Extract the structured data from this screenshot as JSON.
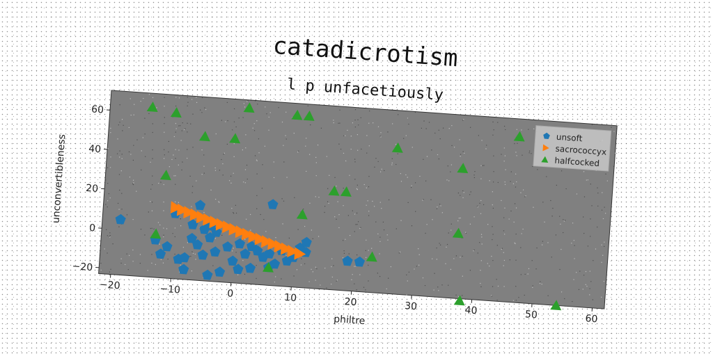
{
  "chart_data": {
    "type": "scatter",
    "title": "catadicrotism",
    "subtitle": "l p unfacetiously",
    "xlabel": "philtre",
    "ylabel": "unconvertibleness",
    "xlim": [
      -22,
      62
    ],
    "ylim": [
      -23,
      70
    ],
    "xticks": [
      -20,
      -10,
      0,
      10,
      20,
      30,
      40,
      50,
      60
    ],
    "yticks": [
      -20,
      0,
      20,
      40,
      60
    ],
    "grid": false,
    "legend_position": "top-right",
    "series": [
      {
        "name": "unsoft",
        "marker": "pentagon",
        "color": "#1f77b4",
        "points": [
          [
            -19,
            5
          ],
          [
            -10,
            10
          ],
          [
            -6,
            15
          ],
          [
            -7,
            5
          ],
          [
            -5,
            3
          ],
          [
            -4,
            5
          ],
          [
            -3,
            2
          ],
          [
            -13,
            -4
          ],
          [
            -12,
            -11
          ],
          [
            -11,
            -7
          ],
          [
            -9,
            -13
          ],
          [
            -8,
            -12
          ],
          [
            -7,
            -2
          ],
          [
            -6,
            -5
          ],
          [
            -5,
            -10
          ],
          [
            -4,
            -1
          ],
          [
            -3,
            -8
          ],
          [
            -2,
            -18
          ],
          [
            -1,
            -5
          ],
          [
            0,
            -12
          ],
          [
            1,
            -3
          ],
          [
            2,
            -8
          ],
          [
            3,
            -4
          ],
          [
            4,
            -6
          ],
          [
            5,
            -9
          ],
          [
            6,
            -7
          ],
          [
            7,
            -12
          ],
          [
            8,
            -5
          ],
          [
            9,
            -10
          ],
          [
            10,
            -8
          ],
          [
            11,
            -3
          ],
          [
            12,
            -5
          ],
          [
            12,
            0
          ],
          [
            -8,
            -18
          ],
          [
            -4,
            -20
          ],
          [
            1,
            -16
          ],
          [
            3,
            -15
          ],
          [
            6,
            -14
          ],
          [
            6,
            18
          ],
          [
            19,
            -8
          ],
          [
            21,
            -8
          ]
        ]
      },
      {
        "name": "sacrococcyx",
        "marker": "triangle-right",
        "color": "#ff7f0e",
        "points": [
          [
            -10,
            13
          ],
          [
            -8.9,
            12.0
          ],
          [
            -7.8,
            11.0
          ],
          [
            -6.7,
            10.0
          ],
          [
            -5.6,
            9.0
          ],
          [
            -4.5,
            8.0
          ],
          [
            -3.4,
            7.0
          ],
          [
            -2.3,
            6.0
          ],
          [
            -1.2,
            5.0
          ],
          [
            -0.1,
            4.0
          ],
          [
            1.0,
            3.0
          ],
          [
            2.1,
            2.0
          ],
          [
            3.2,
            1.0
          ],
          [
            4.3,
            0.0
          ],
          [
            5.4,
            -1.0
          ],
          [
            6.5,
            -2.0
          ],
          [
            7.6,
            -3.0
          ],
          [
            8.7,
            -4.0
          ],
          [
            9.8,
            -5.0
          ],
          [
            11,
            -6
          ]
        ]
      },
      {
        "name": "halfcocked",
        "marker": "triangle-up",
        "color": "#2ca02c",
        "points": [
          [
            -15,
            63
          ],
          [
            -11,
            61
          ],
          [
            1,
            66
          ],
          [
            9,
            64
          ],
          [
            11,
            64
          ],
          [
            -6,
            50
          ],
          [
            -1,
            50
          ],
          [
            26,
            51
          ],
          [
            46,
            61
          ],
          [
            37,
            43
          ],
          [
            -12,
            29
          ],
          [
            16,
            27
          ],
          [
            18,
            27
          ],
          [
            11,
            14
          ],
          [
            37,
            10
          ],
          [
            -13,
            -1
          ],
          [
            23,
            -5
          ],
          [
            6,
            -14
          ],
          [
            38,
            -24
          ],
          [
            54,
            -23
          ]
        ]
      }
    ]
  }
}
